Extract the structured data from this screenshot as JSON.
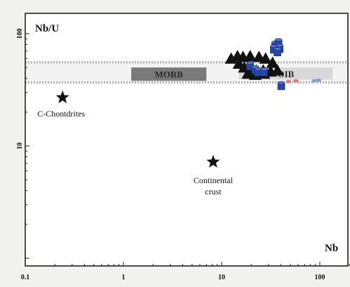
{
  "chart_data": {
    "type": "scatter",
    "x_scale": "log",
    "y_scale": "log",
    "xlabel": "Nb",
    "ylabel": "Nb/U",
    "xlim": [
      0.1,
      200
    ],
    "ylim": [
      1,
      200
    ],
    "x_ticks": [
      {
        "value": 0.1,
        "label": "0.1"
      },
      {
        "value": 1,
        "label": "1"
      },
      {
        "value": 10,
        "label": "10"
      },
      {
        "value": 100,
        "label": "100"
      }
    ],
    "y_ticks": [
      {
        "value": 10,
        "label": "10"
      },
      {
        "value": 100,
        "label": "100"
      }
    ],
    "reference_lines": [
      {
        "y": 56,
        "style": "dashed"
      },
      {
        "y": 37,
        "style": "dashed"
      }
    ],
    "fields": [
      {
        "label": "MORB",
        "x_range": [
          1.2,
          7
        ],
        "y_range": [
          38,
          50
        ],
        "color": "#7a7a7a"
      },
      {
        "label": "OIB",
        "x_range": [
          15,
          135
        ],
        "y_range": [
          39,
          50
        ],
        "color": "#d8d8d8"
      }
    ],
    "annotations": [
      {
        "label": "C-Chontdrites",
        "x": 0.24,
        "y": 27,
        "marker": "star"
      },
      {
        "label": "Continental crust",
        "lines": [
          "Continental",
          "crust"
        ],
        "x": 8.2,
        "y": 7.2,
        "marker": "star"
      }
    ],
    "series": [
      {
        "marker": "triangle",
        "color": "#111111",
        "points": [
          [
            12.5,
            60
          ],
          [
            14.5,
            63
          ],
          [
            16.5,
            62
          ],
          [
            19.5,
            63
          ],
          [
            24,
            62
          ],
          [
            28,
            60
          ],
          [
            33,
            55
          ],
          [
            15,
            54
          ],
          [
            17,
            50
          ],
          [
            20,
            48
          ],
          [
            22.5,
            47
          ],
          [
            26.5,
            47
          ],
          [
            31.5,
            46
          ],
          [
            37,
            47
          ],
          [
            18.5,
            44
          ],
          [
            22,
            43
          ],
          [
            27,
            44
          ]
        ]
      },
      {
        "marker": "cylinder",
        "color": "#2447a8",
        "points": [
          [
            35,
            78
          ],
          [
            38,
            82
          ],
          [
            34,
            72
          ],
          [
            39,
            73
          ],
          [
            37,
            68
          ],
          [
            19.5,
            51
          ],
          [
            22,
            47
          ],
          [
            23.5,
            45
          ],
          [
            27,
            45
          ],
          [
            40.5,
            34
          ]
        ]
      },
      {
        "marker": "circle",
        "color": "#d98080",
        "points": [
          [
            48,
            37.5
          ],
          [
            57,
            38
          ]
        ]
      },
      {
        "marker": "circle",
        "color": "#8aa0d0",
        "points": [
          [
            88,
            38
          ],
          [
            97,
            38.5
          ]
        ]
      }
    ]
  }
}
